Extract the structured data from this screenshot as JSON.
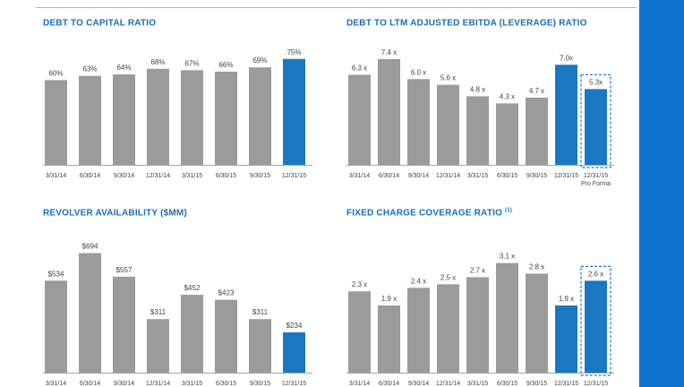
{
  "theme": {
    "accent": "#1a78c2",
    "gray_bar": "#9b9b9b",
    "title_color": "#1a6db5",
    "axis_color": "#9aa9bd",
    "text_color": "#444444",
    "band_color": "#0f74cc"
  },
  "chart_data": [
    {
      "type": "bar",
      "title": "DEBT TO CAPITAL RATIO",
      "title_note": "",
      "categories": [
        "3/31/14",
        "6/30/14",
        "9/30/14",
        "12/31/14",
        "3/31/15",
        "6/30/15",
        "9/30/15",
        "12/31/15"
      ],
      "values": [
        60,
        63,
        64,
        68,
        67,
        66,
        69,
        75
      ],
      "labels": [
        "60%",
        "63%",
        "64%",
        "68%",
        "67%",
        "66%",
        "69%",
        "75%"
      ],
      "highlight": [
        false,
        false,
        false,
        false,
        false,
        false,
        false,
        true
      ],
      "dashed": [
        false,
        false,
        false,
        false,
        false,
        false,
        false,
        false
      ],
      "category_notes": [
        "",
        "",
        "",
        "",
        "",
        "",
        "",
        ""
      ],
      "ylim": [
        0,
        85
      ],
      "xlabel": "",
      "ylabel": "",
      "grid": false
    },
    {
      "type": "bar",
      "title": "DEBT TO LTM ADJUSTED EBITDA (LEVERAGE) RATIO",
      "title_note": "",
      "categories": [
        "3/31/14",
        "6/30/14",
        "9/30/14",
        "12/31/14",
        "3/31/15",
        "6/30/15",
        "9/30/15",
        "12/31/15",
        "12/31/15"
      ],
      "values": [
        6.3,
        7.4,
        6.0,
        5.6,
        4.8,
        4.3,
        4.7,
        7.0,
        5.3
      ],
      "labels": [
        "6.3 x",
        "7.4 x",
        "6.0 x",
        "5.6 x",
        "4.8 x",
        "4.3 x",
        "4.7 x",
        "7.0x",
        "5.3x"
      ],
      "highlight": [
        false,
        false,
        false,
        false,
        false,
        false,
        false,
        true,
        true
      ],
      "dashed": [
        false,
        false,
        false,
        false,
        false,
        false,
        false,
        false,
        true
      ],
      "category_notes": [
        "",
        "",
        "",
        "",
        "",
        "",
        "",
        "",
        "Pro Forma"
      ],
      "ylim": [
        0,
        8.4
      ],
      "xlabel": "",
      "ylabel": "",
      "grid": false
    },
    {
      "type": "bar",
      "title": "REVOLVER AVAILABILITY ($MM)",
      "title_note": "",
      "categories": [
        "3/31/14",
        "6/30/14",
        "9/30/14",
        "12/31/14",
        "3/31/15",
        "6/30/15",
        "9/30/15",
        "12/31/15"
      ],
      "values": [
        534,
        694,
        557,
        311,
        452,
        423,
        311,
        234
      ],
      "labels": [
        "$534",
        "$694",
        "$557",
        "$311",
        "$452",
        "$423",
        "$311",
        "$234"
      ],
      "highlight": [
        false,
        false,
        false,
        false,
        false,
        false,
        false,
        true
      ],
      "dashed": [
        false,
        false,
        false,
        false,
        false,
        false,
        false,
        false
      ],
      "category_notes": [
        "",
        "",
        "",
        "",
        "",
        "",
        "",
        ""
      ],
      "ylim": [
        0,
        780
      ],
      "xlabel": "",
      "ylabel": "",
      "grid": false
    },
    {
      "type": "bar",
      "title": "FIXED CHARGE COVERAGE RATIO",
      "title_note": "(1)",
      "categories": [
        "3/31/14",
        "6/30/14",
        "9/30/14",
        "12/31/14",
        "3/31/15",
        "6/30/15",
        "9/30/15",
        "12/31/15",
        "12/31/15"
      ],
      "values": [
        2.3,
        1.9,
        2.4,
        2.5,
        2.7,
        3.1,
        2.8,
        1.9,
        2.6
      ],
      "labels": [
        "2.3 x",
        "1.9 x",
        "2.4 x",
        "2.5 x",
        "2.7 x",
        "3.1 x",
        "2.8 x",
        "1.9 x",
        "2.6 x"
      ],
      "highlight": [
        false,
        false,
        false,
        false,
        false,
        false,
        false,
        true,
        true
      ],
      "dashed": [
        false,
        false,
        false,
        false,
        false,
        false,
        false,
        false,
        true
      ],
      "category_notes": [
        "",
        "",
        "",
        "",
        "",
        "",
        "",
        "",
        ""
      ],
      "ylim": [
        0,
        3.8
      ],
      "xlabel": "",
      "ylabel": "",
      "grid": false
    }
  ]
}
